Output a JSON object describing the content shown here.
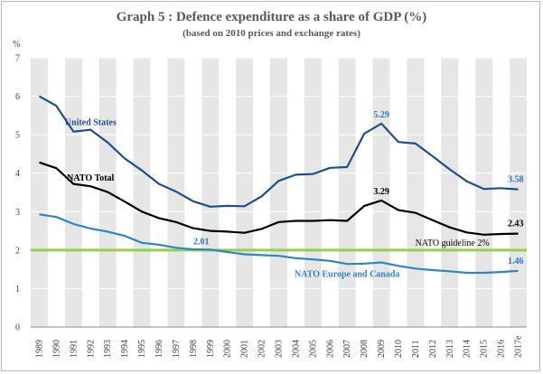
{
  "chart_data": {
    "type": "line",
    "title": "Graph 5 : Defence expenditure as a share of GDP (%)",
    "subtitle": "(based on 2010 prices and exchange rates)",
    "ylabel": "%",
    "ylim": [
      0,
      7
    ],
    "yticks": [
      "0",
      "1",
      "2",
      "3",
      "4",
      "5",
      "6",
      "7"
    ],
    "grid": "alternating vertical bands, horizontal gridlines",
    "categories": [
      "1989",
      "1990",
      "1991",
      "1992",
      "1993",
      "1994",
      "1995",
      "1996",
      "1997",
      "1998",
      "1999",
      "2000",
      "2001",
      "2002",
      "2003",
      "2004",
      "2005",
      "2006",
      "2007",
      "2008",
      "2009",
      "2010",
      "2011",
      "2012",
      "2013",
      "2014",
      "2015",
      "2016",
      "2017e"
    ],
    "series": [
      {
        "name": "United States",
        "color": "#1f4e8c",
        "values": [
          6.0,
          5.75,
          5.08,
          5.13,
          4.8,
          4.38,
          4.07,
          3.72,
          3.52,
          3.27,
          3.13,
          3.15,
          3.14,
          3.4,
          3.8,
          3.96,
          3.98,
          4.14,
          4.16,
          5.03,
          5.29,
          4.81,
          4.77,
          4.44,
          4.1,
          3.79,
          3.59,
          3.61,
          3.58
        ]
      },
      {
        "name": "NATO Total",
        "color": "#000000",
        "values": [
          4.28,
          4.13,
          3.72,
          3.66,
          3.51,
          3.26,
          3.0,
          2.83,
          2.73,
          2.57,
          2.5,
          2.48,
          2.45,
          2.55,
          2.73,
          2.76,
          2.76,
          2.78,
          2.76,
          3.15,
          3.29,
          3.04,
          2.97,
          2.78,
          2.59,
          2.46,
          2.4,
          2.42,
          2.43
        ]
      },
      {
        "name": "NATO Europe and Canada",
        "color": "#2e86c1",
        "values": [
          2.93,
          2.86,
          2.68,
          2.56,
          2.48,
          2.37,
          2.19,
          2.14,
          2.06,
          2.02,
          2.01,
          1.95,
          1.89,
          1.87,
          1.85,
          1.79,
          1.76,
          1.72,
          1.64,
          1.65,
          1.68,
          1.59,
          1.52,
          1.48,
          1.45,
          1.41,
          1.41,
          1.43,
          1.46
        ]
      }
    ],
    "guideline": {
      "label": "NATO guideline 2%",
      "value": 2,
      "color": "#92d050"
    },
    "annotations": [
      {
        "text": "5.29",
        "category": "2009",
        "value": 5.29,
        "color": "#2e75b6"
      },
      {
        "text": "3.58",
        "category": "2017e",
        "value": 3.58,
        "color": "#2e75b6"
      },
      {
        "text": "3.29",
        "category": "2009",
        "value": 3.29,
        "color": "#000000"
      },
      {
        "text": "2.43",
        "category": "2017e",
        "value": 2.43,
        "color": "#000000"
      },
      {
        "text": "2.01",
        "category": "1999",
        "value": 2.01,
        "color": "#2e75b6"
      },
      {
        "text": "1.46",
        "category": "2017e",
        "value": 1.46,
        "color": "#2e75b6"
      }
    ],
    "series_labels": [
      {
        "text": "United States",
        "category": "1992",
        "value": 5.25,
        "color": "#1f4e8c"
      },
      {
        "text": "NATO Total",
        "category": "1992",
        "value": 3.8,
        "color": "#000000"
      },
      {
        "text": "NATO Europe and Canada",
        "category": "2007",
        "value": 1.3,
        "color": "#2e86c1"
      }
    ]
  }
}
